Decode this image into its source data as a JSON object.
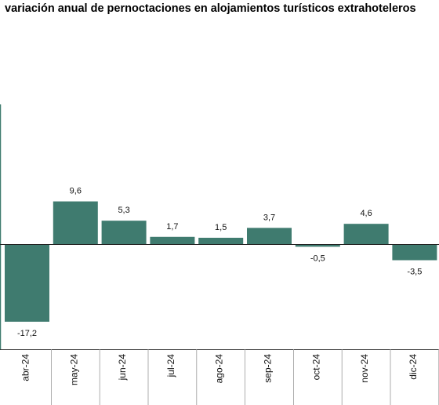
{
  "chart_data": {
    "type": "bar",
    "title": "variación anual de pernoctaciones en alojamientos turísticos extrahoteleros",
    "categories": [
      "abr-24",
      "may-24",
      "jun-24",
      "jul-24",
      "ago-24",
      "sep-24",
      "oct-24",
      "nov-24",
      "dic-24"
    ],
    "values": [
      -17.2,
      9.6,
      5.3,
      1.7,
      1.5,
      3.7,
      -0.5,
      4.6,
      -3.5
    ],
    "value_labels": [
      "-17,2",
      "9,6",
      "5,3",
      "1,7",
      "1,5",
      "3,7",
      "-0,5",
      "4,6",
      "-3,5"
    ],
    "ylim": [
      -21,
      31
    ],
    "bar_color": "#3f7b6f",
    "grid": false,
    "xlabel": "",
    "ylabel": ""
  }
}
